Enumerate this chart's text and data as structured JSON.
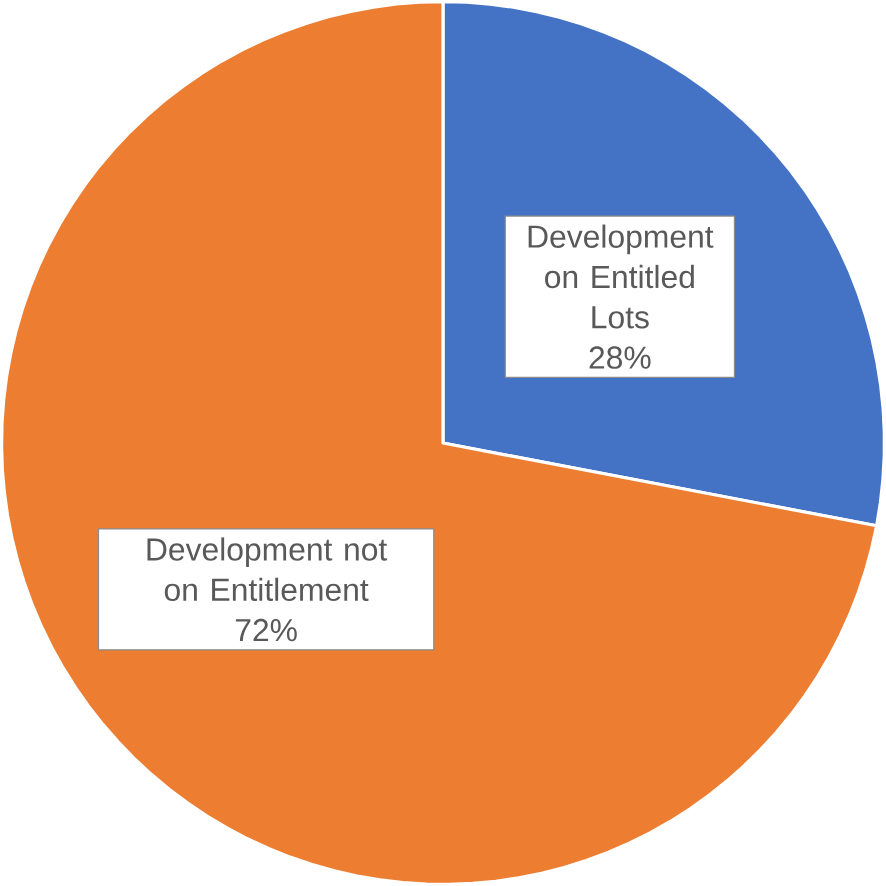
{
  "chart_data": {
    "type": "pie",
    "categories": [
      "Development on Entitled Lots",
      "Development not on Entitlement"
    ],
    "values": [
      28,
      72
    ],
    "colors": [
      "#4472c4",
      "#ed7d31"
    ],
    "value_labels": [
      "28%",
      "72%"
    ]
  }
}
